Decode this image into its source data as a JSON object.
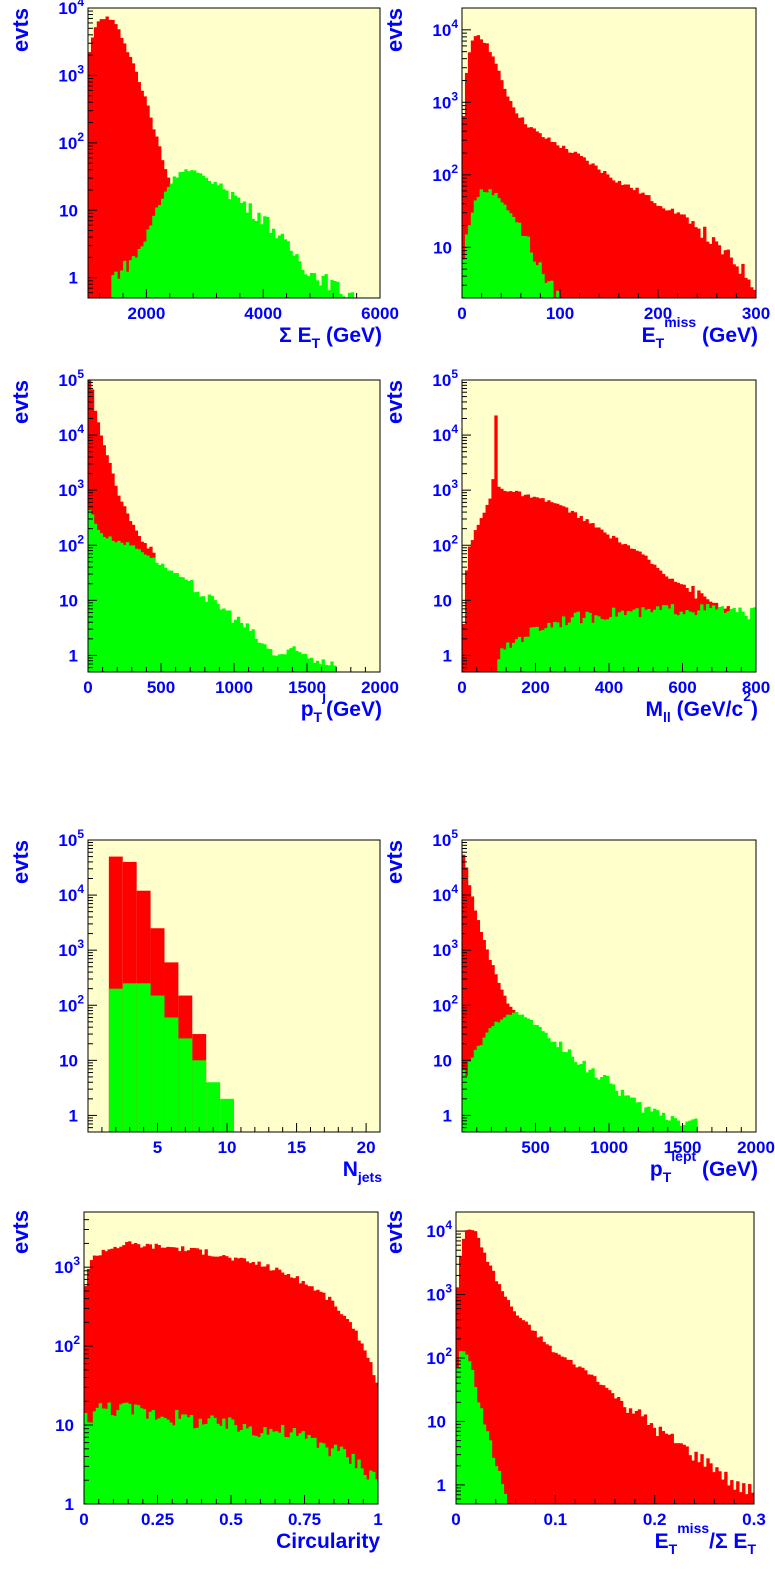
{
  "colors": {
    "background": "#ffffcc",
    "series_a": "#ff0000",
    "series_b": "#00ff00",
    "axis": "#000000",
    "label": "#0000ff"
  },
  "chart_data": [
    {
      "type": "area",
      "ylabel": "evts",
      "xlabel": "Σ E_T (GeV)",
      "xlim": [
        1000,
        6000
      ],
      "ylim": [
        0.5,
        10000
      ],
      "log_y": true,
      "x_ticks": [
        2000,
        4000,
        6000
      ],
      "y_ticks": [
        {
          "value": 10000,
          "base": "10",
          "exp": "4"
        },
        {
          "value": 1000,
          "base": "10",
          "exp": "3"
        },
        {
          "value": 100,
          "base": "10",
          "exp": "2"
        },
        {
          "value": 10,
          "base": "10",
          "exp": ""
        },
        {
          "value": 1,
          "base": "1",
          "exp": ""
        }
      ],
      "series": [
        {
          "x": [
            1000,
            1150,
            1300,
            1450,
            1600,
            1800,
            2000,
            2200,
            2400,
            2600,
            2800
          ],
          "y": [
            2000,
            6000,
            7500,
            6000,
            3500,
            1300,
            400,
            100,
            25,
            8,
            2
          ]
        },
        {
          "x": [
            1400,
            1800,
            2000,
            2200,
            2400,
            2600,
            2800,
            3000,
            3200,
            3400,
            3600,
            3800,
            4000,
            4200,
            4400,
            4600,
            4800,
            5000,
            5200,
            5400,
            5600
          ],
          "y": [
            1,
            2,
            4,
            12,
            25,
            40,
            38,
            30,
            25,
            20,
            14,
            10,
            8,
            5,
            3,
            2,
            1.2,
            1,
            0.8,
            0.6,
            0.6
          ]
        }
      ]
    },
    {
      "type": "area",
      "ylabel": "evts",
      "xlabel": "E_T^miss (GeV)",
      "xlim": [
        0,
        300
      ],
      "ylim": [
        2,
        20000
      ],
      "log_y": true,
      "x_ticks": [
        0,
        100,
        200,
        300
      ],
      "y_ticks": [
        {
          "value": 10000,
          "base": "10",
          "exp": "4"
        },
        {
          "value": 1000,
          "base": "10",
          "exp": "3"
        },
        {
          "value": 100,
          "base": "10",
          "exp": "2"
        },
        {
          "value": 10,
          "base": "10",
          "exp": ""
        }
      ],
      "series": [
        {
          "x": [
            0,
            5,
            10,
            15,
            20,
            30,
            40,
            50,
            60,
            70,
            80,
            100,
            120,
            140,
            160,
            180,
            200,
            220,
            240,
            260,
            280,
            300
          ],
          "y": [
            300,
            3000,
            7000,
            9000,
            8000,
            5000,
            2000,
            1000,
            600,
            450,
            350,
            250,
            180,
            120,
            80,
            60,
            40,
            30,
            20,
            10,
            6,
            3
          ]
        },
        {
          "x": [
            0,
            5,
            10,
            15,
            20,
            30,
            40,
            50,
            60,
            70,
            80,
            90,
            100
          ],
          "y": [
            5,
            15,
            30,
            50,
            60,
            60,
            45,
            30,
            18,
            10,
            5,
            3,
            2
          ]
        }
      ]
    },
    {
      "type": "area",
      "ylabel": "evts",
      "xlabel": "p_T^j(GeV)",
      "xlim": [
        0,
        2000
      ],
      "ylim": [
        0.5,
        100000
      ],
      "log_y": true,
      "x_ticks": [
        0,
        500,
        1000,
        1500,
        2000
      ],
      "y_ticks": [
        {
          "value": 100000,
          "base": "10",
          "exp": "5"
        },
        {
          "value": 10000,
          "base": "10",
          "exp": "4"
        },
        {
          "value": 1000,
          "base": "10",
          "exp": "3"
        },
        {
          "value": 100,
          "base": "10",
          "exp": "2"
        },
        {
          "value": 10,
          "base": "10",
          "exp": ""
        },
        {
          "value": 1,
          "base": "1",
          "exp": ""
        }
      ],
      "series": [
        {
          "x": [
            0,
            20,
            50,
            100,
            150,
            200,
            250,
            300,
            350,
            400,
            450
          ],
          "y": [
            100000,
            90000,
            30000,
            8000,
            3000,
            1000,
            500,
            250,
            150,
            100,
            80
          ]
        },
        {
          "x": [
            0,
            20,
            50,
            100,
            200,
            300,
            400,
            500,
            600,
            700,
            800,
            900,
            1000,
            1100,
            1200,
            1300,
            1400,
            1600,
            1700
          ],
          "y": [
            500,
            400,
            250,
            150,
            120,
            100,
            70,
            45,
            30,
            20,
            12,
            8,
            5,
            3,
            1.5,
            1,
            1.2,
            0.8,
            0.8
          ]
        }
      ]
    },
    {
      "type": "area",
      "ylabel": "evts",
      "xlabel": "M_ll (GeV/c^2)",
      "xlim": [
        0,
        800
      ],
      "ylim": [
        0.5,
        100000
      ],
      "log_y": true,
      "x_ticks": [
        0,
        200,
        400,
        600,
        800
      ],
      "y_ticks": [
        {
          "value": 100000,
          "base": "10",
          "exp": "5"
        },
        {
          "value": 10000,
          "base": "10",
          "exp": "4"
        },
        {
          "value": 1000,
          "base": "10",
          "exp": "3"
        },
        {
          "value": 100,
          "base": "10",
          "exp": "2"
        },
        {
          "value": 10,
          "base": "10",
          "exp": ""
        },
        {
          "value": 1,
          "base": "1",
          "exp": ""
        }
      ],
      "series": [
        {
          "x": [
            0,
            10,
            20,
            40,
            60,
            80,
            88,
            91,
            94,
            100,
            120,
            150,
            200,
            250,
            300,
            350,
            400,
            450,
            500,
            550,
            600,
            650,
            700,
            750,
            800
          ],
          "y": [
            0.8,
            30,
            100,
            200,
            400,
            800,
            3000,
            60000,
            3000,
            1200,
            1000,
            900,
            700,
            600,
            400,
            250,
            150,
            100,
            60,
            30,
            20,
            12,
            8,
            5,
            4
          ]
        },
        {
          "x": [
            100,
            150,
            200,
            250,
            300,
            350,
            400,
            450,
            500,
            550,
            600,
            650,
            700,
            750,
            800
          ],
          "y": [
            1,
            2,
            3,
            4,
            5,
            5,
            6,
            6,
            6,
            7,
            7,
            7,
            7,
            6,
            6
          ]
        }
      ]
    },
    {
      "type": "bar",
      "ylabel": "evts",
      "xlabel": "N_jets",
      "xlim": [
        0,
        21
      ],
      "ylim": [
        0.5,
        100000
      ],
      "log_y": true,
      "x_ticks": [
        5,
        10,
        15,
        20
      ],
      "y_ticks": [
        {
          "value": 100000,
          "base": "10",
          "exp": "5"
        },
        {
          "value": 10000,
          "base": "10",
          "exp": "4"
        },
        {
          "value": 1000,
          "base": "10",
          "exp": "3"
        },
        {
          "value": 100,
          "base": "10",
          "exp": "2"
        },
        {
          "value": 10,
          "base": "10",
          "exp": ""
        },
        {
          "value": 1,
          "base": "1",
          "exp": ""
        }
      ],
      "series": [
        {
          "bins": [
            [
              1.5,
              2.5,
              50000
            ],
            [
              2.5,
              3.5,
              40000
            ],
            [
              3.5,
              4.5,
              12000
            ],
            [
              4.5,
              5.5,
              2500
            ],
            [
              5.5,
              6.5,
              600
            ],
            [
              6.5,
              7.5,
              150
            ],
            [
              7.5,
              8.5,
              30
            ]
          ]
        },
        {
          "bins": [
            [
              1.5,
              2.5,
              200
            ],
            [
              2.5,
              3.5,
              250
            ],
            [
              3.5,
              4.5,
              250
            ],
            [
              4.5,
              5.5,
              150
            ],
            [
              5.5,
              6.5,
              60
            ],
            [
              6.5,
              7.5,
              25
            ],
            [
              7.5,
              8.5,
              10
            ],
            [
              8.5,
              9.5,
              4
            ],
            [
              9.5,
              10.5,
              2
            ]
          ]
        }
      ]
    },
    {
      "type": "area",
      "ylabel": "evts",
      "xlabel": "p_T^lept (GeV)",
      "xlim": [
        0,
        2000
      ],
      "ylim": [
        0.5,
        100000
      ],
      "log_y": true,
      "x_ticks": [
        500,
        1000,
        1500,
        2000
      ],
      "y_ticks": [
        {
          "value": 100000,
          "base": "10",
          "exp": "5"
        },
        {
          "value": 10000,
          "base": "10",
          "exp": "4"
        },
        {
          "value": 1000,
          "base": "10",
          "exp": "3"
        },
        {
          "value": 100,
          "base": "10",
          "exp": "2"
        },
        {
          "value": 10,
          "base": "10",
          "exp": ""
        },
        {
          "value": 1,
          "base": "1",
          "exp": ""
        }
      ],
      "series": [
        {
          "x": [
            0,
            20,
            50,
            100,
            150,
            200,
            250,
            300,
            350,
            400
          ],
          "y": [
            60000,
            50000,
            15000,
            4000,
            1500,
            600,
            250,
            120,
            80,
            60
          ]
        },
        {
          "x": [
            0,
            50,
            100,
            200,
            300,
            400,
            500,
            600,
            700,
            800,
            900,
            1000,
            1100,
            1200,
            1300,
            1400,
            1500,
            1600
          ],
          "y": [
            5,
            8,
            15,
            40,
            70,
            70,
            45,
            25,
            15,
            10,
            6,
            4,
            2.5,
            1.5,
            1.2,
            1,
            0.8,
            0.8
          ]
        }
      ]
    },
    {
      "type": "area",
      "ylabel": "evts",
      "xlabel": "Circularity",
      "xlim": [
        0,
        1
      ],
      "ylim": [
        1,
        5000
      ],
      "log_y": true,
      "x_ticks": [
        0,
        0.25,
        0.5,
        0.75,
        1
      ],
      "y_ticks": [
        {
          "value": 1000,
          "base": "10",
          "exp": "3"
        },
        {
          "value": 100,
          "base": "10",
          "exp": "2"
        },
        {
          "value": 10,
          "base": "10",
          "exp": ""
        },
        {
          "value": 1,
          "base": "1",
          "exp": ""
        }
      ],
      "series": [
        {
          "x": [
            0,
            0.01,
            0.03,
            0.06,
            0.1,
            0.15,
            0.2,
            0.3,
            0.4,
            0.5,
            0.6,
            0.7,
            0.8,
            0.85,
            0.9,
            0.94,
            0.97,
            1.0
          ],
          "y": [
            400,
            900,
            1300,
            1600,
            1800,
            2000,
            1900,
            1800,
            1600,
            1300,
            1100,
            800,
            500,
            350,
            200,
            120,
            70,
            30
          ]
        },
        {
          "x": [
            0,
            0.05,
            0.1,
            0.2,
            0.3,
            0.4,
            0.5,
            0.6,
            0.7,
            0.8,
            0.85,
            0.9,
            0.95,
            1.0
          ],
          "y": [
            12,
            16,
            17,
            15,
            13,
            11,
            10,
            9,
            8,
            6,
            5,
            4,
            3,
            2
          ]
        }
      ]
    },
    {
      "type": "area",
      "ylabel": "evts",
      "xlabel": "E_T^miss/Σ E_T",
      "xlim": [
        0,
        0.3
      ],
      "ylim": [
        0.5,
        20000
      ],
      "log_y": true,
      "x_ticks": [
        0,
        0.1,
        0.2,
        0.3
      ],
      "y_ticks": [
        {
          "value": 10000,
          "base": "10",
          "exp": "4"
        },
        {
          "value": 1000,
          "base": "10",
          "exp": "3"
        },
        {
          "value": 100,
          "base": "10",
          "exp": "2"
        },
        {
          "value": 10,
          "base": "10",
          "exp": ""
        },
        {
          "value": 1,
          "base": "1",
          "exp": ""
        }
      ],
      "series": [
        {
          "x": [
            0,
            0.005,
            0.01,
            0.015,
            0.02,
            0.03,
            0.04,
            0.05,
            0.06,
            0.08,
            0.1,
            0.12,
            0.14,
            0.16,
            0.18,
            0.2,
            0.22,
            0.24,
            0.26,
            0.28,
            0.3
          ],
          "y": [
            800,
            5000,
            10000,
            12000,
            9000,
            4000,
            1800,
            900,
            500,
            250,
            120,
            80,
            50,
            25,
            15,
            8,
            5,
            3,
            2,
            1,
            0.8
          ]
        },
        {
          "x": [
            0,
            0.005,
            0.01,
            0.015,
            0.02,
            0.03,
            0.04,
            0.05
          ],
          "y": [
            50,
            150,
            120,
            80,
            30,
            8,
            2,
            0.8
          ]
        }
      ]
    }
  ]
}
